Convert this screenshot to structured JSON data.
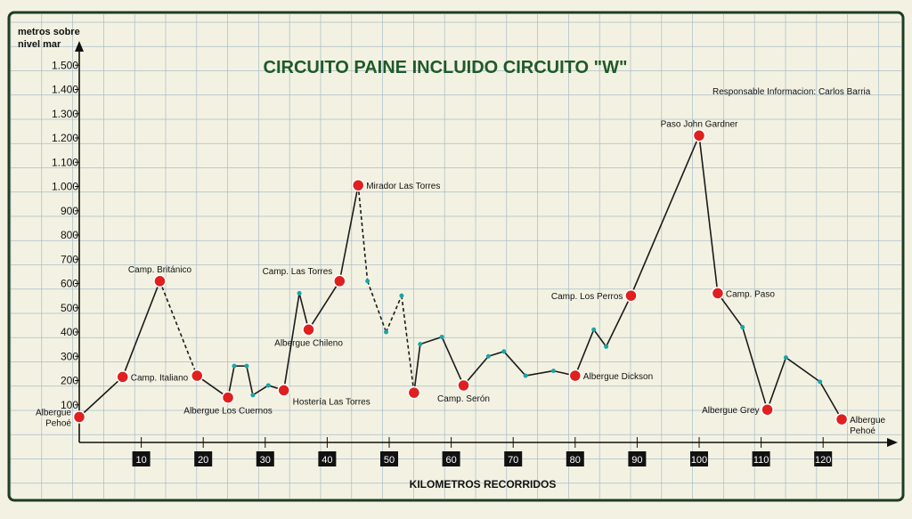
{
  "chart_data": {
    "type": "line",
    "title": "CIRCUITO PAINE INCLUIDO CIRCUITO \"W\"",
    "subtitle": "Responsable Informacion:  Carlos Barria",
    "ylabel_line1": "metros sobre",
    "ylabel_line2": "nivel mar",
    "xlabel": "KILOMETROS RECORRIDOS",
    "xlim": [
      0,
      130
    ],
    "ylim": [
      0,
      1600
    ],
    "grid": true,
    "y_ticks": [
      "100",
      "200",
      "300",
      "400",
      "500",
      "600",
      "700",
      "800",
      "900",
      "1.000",
      "1.100",
      "1.200",
      "1.300",
      "1.400",
      "1.500"
    ],
    "y_tick_values": [
      100,
      200,
      300,
      400,
      500,
      600,
      700,
      800,
      900,
      1000,
      1100,
      1200,
      1300,
      1400,
      1500
    ],
    "x_ticks": [
      "10",
      "20",
      "30",
      "40",
      "50",
      "60",
      "70",
      "80",
      "90",
      "100",
      "110",
      "120"
    ],
    "x_tick_values": [
      10,
      20,
      30,
      40,
      50,
      60,
      70,
      80,
      90,
      100,
      110,
      120
    ],
    "line_color": "#1b1b1b",
    "stop_color": "#e01f1f",
    "waypoint_color": "#1aa5a5",
    "title_color": "#1f5a2a",
    "points": [
      {
        "x": 0,
        "y": 50,
        "kind": "stop",
        "label_lines": [
          "Albergue",
          "Pehoé"
        ],
        "label_pos": "left"
      },
      {
        "x": 7,
        "y": 215,
        "kind": "stop",
        "label_lines": [
          "Camp. Italiano"
        ],
        "label_pos": "right"
      },
      {
        "x": 13,
        "y": 610,
        "kind": "stop",
        "label_lines": [
          "Camp. Británico"
        ],
        "label_pos": "above",
        "dashed_out": true
      },
      {
        "x": 19,
        "y": 220,
        "kind": "stop",
        "label_lines": [],
        "label_pos": "none"
      },
      {
        "x": 24,
        "y": 130,
        "kind": "stop",
        "label_lines": [
          "Albergue Los Cuernos"
        ],
        "label_pos": "below"
      },
      {
        "x": 25,
        "y": 260,
        "kind": "waypoint"
      },
      {
        "x": 27,
        "y": 260,
        "kind": "waypoint"
      },
      {
        "x": 28,
        "y": 140,
        "kind": "waypoint"
      },
      {
        "x": 30.5,
        "y": 180,
        "kind": "waypoint"
      },
      {
        "x": 33,
        "y": 160,
        "kind": "stop",
        "label_lines": [
          "Hostería  Las Torres"
        ],
        "label_pos": "below-right"
      },
      {
        "x": 35.5,
        "y": 560,
        "kind": "waypoint"
      },
      {
        "x": 37,
        "y": 410,
        "kind": "stop",
        "label_lines": [
          "Albergue Chileno"
        ],
        "label_pos": "below"
      },
      {
        "x": 42,
        "y": 610,
        "kind": "stop",
        "label_lines": [
          "Camp. Las Torres"
        ],
        "label_pos": "above-left"
      },
      {
        "x": 45,
        "y": 1005,
        "kind": "stop",
        "label_lines": [
          "Mirador  Las Torres"
        ],
        "label_pos": "right",
        "dashed_out": true
      },
      {
        "x": 46.5,
        "y": 610,
        "kind": "waypoint",
        "dashed_out": true
      },
      {
        "x": 49.5,
        "y": 400,
        "kind": "waypoint",
        "dashed_out": true
      },
      {
        "x": 52,
        "y": 550,
        "kind": "waypoint",
        "dashed_out": true
      },
      {
        "x": 54,
        "y": 150,
        "kind": "stop",
        "label_lines": [],
        "label_pos": "none"
      },
      {
        "x": 55,
        "y": 350,
        "kind": "waypoint"
      },
      {
        "x": 58.5,
        "y": 380,
        "kind": "waypoint"
      },
      {
        "x": 62,
        "y": 180,
        "kind": "stop",
        "label_lines": [
          "Camp. Serón"
        ],
        "label_pos": "below"
      },
      {
        "x": 66,
        "y": 300,
        "kind": "waypoint"
      },
      {
        "x": 68.5,
        "y": 320,
        "kind": "waypoint"
      },
      {
        "x": 72,
        "y": 220,
        "kind": "waypoint"
      },
      {
        "x": 76.5,
        "y": 240,
        "kind": "waypoint"
      },
      {
        "x": 80,
        "y": 220,
        "kind": "stop",
        "label_lines": [
          "Albergue Dickson"
        ],
        "label_pos": "right"
      },
      {
        "x": 83,
        "y": 410,
        "kind": "waypoint"
      },
      {
        "x": 85,
        "y": 340,
        "kind": "waypoint"
      },
      {
        "x": 89,
        "y": 550,
        "kind": "stop",
        "label_lines": [
          "Camp. Los Perros"
        ],
        "label_pos": "left"
      },
      {
        "x": 100,
        "y": 1210,
        "kind": "stop",
        "label_lines": [
          "Paso John Gardner"
        ],
        "label_pos": "above"
      },
      {
        "x": 103,
        "y": 560,
        "kind": "stop",
        "label_lines": [
          "Camp. Paso"
        ],
        "label_pos": "right"
      },
      {
        "x": 107,
        "y": 420,
        "kind": "waypoint"
      },
      {
        "x": 111,
        "y": 80,
        "kind": "stop",
        "label_lines": [
          "Albergue Grey"
        ],
        "label_pos": "left"
      },
      {
        "x": 114,
        "y": 295,
        "kind": "waypoint"
      },
      {
        "x": 119.5,
        "y": 195,
        "kind": "waypoint"
      },
      {
        "x": 123,
        "y": 40,
        "kind": "stop",
        "label_lines": [
          "Albergue",
          "Pehoé"
        ],
        "label_pos": "right"
      }
    ]
  }
}
